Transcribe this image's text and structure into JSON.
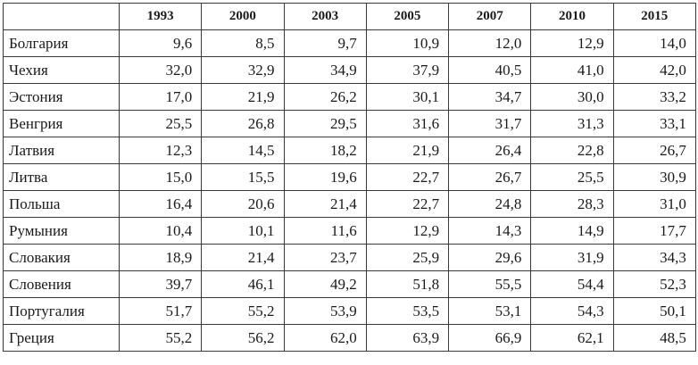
{
  "table": {
    "corner": "",
    "columns": [
      "1993",
      "2000",
      "2003",
      "2005",
      "2007",
      "2010",
      "2015"
    ],
    "rows": [
      {
        "country": "Болгария",
        "values": [
          "9,6",
          "8,5",
          "9,7",
          "10,9",
          "12,0",
          "12,9",
          "14,0"
        ]
      },
      {
        "country": "Чехия",
        "values": [
          "32,0",
          "32,9",
          "34,9",
          "37,9",
          "40,5",
          "41,0",
          "42,0"
        ]
      },
      {
        "country": "Эстония",
        "values": [
          "17,0",
          "21,9",
          "26,2",
          "30,1",
          "34,7",
          "30,0",
          "33,2"
        ]
      },
      {
        "country": "Венгрия",
        "values": [
          "25,5",
          "26,8",
          "29,5",
          "31,6",
          "31,7",
          "31,3",
          "33,1"
        ]
      },
      {
        "country": "Латвия",
        "values": [
          "12,3",
          "14,5",
          "18,2",
          "21,9",
          "26,4",
          "22,8",
          "26,7"
        ]
      },
      {
        "country": "Литва",
        "values": [
          "15,0",
          "15,5",
          "19,6",
          "22,7",
          "26,7",
          "25,5",
          "30,9"
        ]
      },
      {
        "country": "Польша",
        "values": [
          "16,4",
          "20,6",
          "21,4",
          "22,7",
          "24,8",
          "28,3",
          "31,0"
        ]
      },
      {
        "country": "Румыния",
        "values": [
          "10,4",
          "10,1",
          "11,6",
          "12,9",
          "14,3",
          "14,9",
          "17,7"
        ]
      },
      {
        "country": "Словакия",
        "values": [
          "18,9",
          "21,4",
          "23,7",
          "25,9",
          "29,6",
          "31,9",
          "34,3"
        ]
      },
      {
        "country": "Словения",
        "values": [
          "39,7",
          "46,1",
          "49,2",
          "51,8",
          "55,5",
          "54,4",
          "52,3"
        ]
      },
      {
        "country": "Португалия",
        "values": [
          "51,7",
          "55,2",
          "53,9",
          "53,5",
          "53,1",
          "54,3",
          "50,1"
        ]
      },
      {
        "country": "Греция",
        "values": [
          "55,2",
          "56,2",
          "62,0",
          "63,9",
          "66,9",
          "62,1",
          "48,5"
        ]
      }
    ]
  }
}
